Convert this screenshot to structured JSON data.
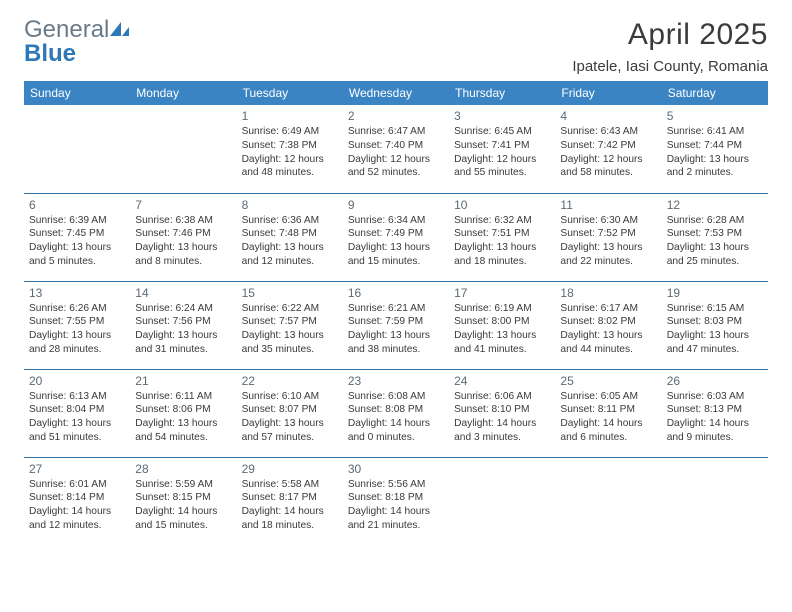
{
  "logo": {
    "text_general": "General",
    "text_blue": "Blue"
  },
  "title": "April 2025",
  "location": "Ipatele, Iasi County, Romania",
  "colors": {
    "header_bg": "#3a84c4",
    "header_text": "#ffffff",
    "rule": "#2f6fa6",
    "daynum": "#5b6a74",
    "body_text": "#3a3a3a",
    "logo_gray": "#6b7a87",
    "logo_blue": "#2f78b7"
  },
  "weekdays": [
    "Sunday",
    "Monday",
    "Tuesday",
    "Wednesday",
    "Thursday",
    "Friday",
    "Saturday"
  ],
  "weeks": [
    [
      null,
      null,
      {
        "n": "1",
        "sunrise": "6:49 AM",
        "sunset": "7:38 PM",
        "daylight": "12 hours and 48 minutes."
      },
      {
        "n": "2",
        "sunrise": "6:47 AM",
        "sunset": "7:40 PM",
        "daylight": "12 hours and 52 minutes."
      },
      {
        "n": "3",
        "sunrise": "6:45 AM",
        "sunset": "7:41 PM",
        "daylight": "12 hours and 55 minutes."
      },
      {
        "n": "4",
        "sunrise": "6:43 AM",
        "sunset": "7:42 PM",
        "daylight": "12 hours and 58 minutes."
      },
      {
        "n": "5",
        "sunrise": "6:41 AM",
        "sunset": "7:44 PM",
        "daylight": "13 hours and 2 minutes."
      }
    ],
    [
      {
        "n": "6",
        "sunrise": "6:39 AM",
        "sunset": "7:45 PM",
        "daylight": "13 hours and 5 minutes."
      },
      {
        "n": "7",
        "sunrise": "6:38 AM",
        "sunset": "7:46 PM",
        "daylight": "13 hours and 8 minutes."
      },
      {
        "n": "8",
        "sunrise": "6:36 AM",
        "sunset": "7:48 PM",
        "daylight": "13 hours and 12 minutes."
      },
      {
        "n": "9",
        "sunrise": "6:34 AM",
        "sunset": "7:49 PM",
        "daylight": "13 hours and 15 minutes."
      },
      {
        "n": "10",
        "sunrise": "6:32 AM",
        "sunset": "7:51 PM",
        "daylight": "13 hours and 18 minutes."
      },
      {
        "n": "11",
        "sunrise": "6:30 AM",
        "sunset": "7:52 PM",
        "daylight": "13 hours and 22 minutes."
      },
      {
        "n": "12",
        "sunrise": "6:28 AM",
        "sunset": "7:53 PM",
        "daylight": "13 hours and 25 minutes."
      }
    ],
    [
      {
        "n": "13",
        "sunrise": "6:26 AM",
        "sunset": "7:55 PM",
        "daylight": "13 hours and 28 minutes."
      },
      {
        "n": "14",
        "sunrise": "6:24 AM",
        "sunset": "7:56 PM",
        "daylight": "13 hours and 31 minutes."
      },
      {
        "n": "15",
        "sunrise": "6:22 AM",
        "sunset": "7:57 PM",
        "daylight": "13 hours and 35 minutes."
      },
      {
        "n": "16",
        "sunrise": "6:21 AM",
        "sunset": "7:59 PM",
        "daylight": "13 hours and 38 minutes."
      },
      {
        "n": "17",
        "sunrise": "6:19 AM",
        "sunset": "8:00 PM",
        "daylight": "13 hours and 41 minutes."
      },
      {
        "n": "18",
        "sunrise": "6:17 AM",
        "sunset": "8:02 PM",
        "daylight": "13 hours and 44 minutes."
      },
      {
        "n": "19",
        "sunrise": "6:15 AM",
        "sunset": "8:03 PM",
        "daylight": "13 hours and 47 minutes."
      }
    ],
    [
      {
        "n": "20",
        "sunrise": "6:13 AM",
        "sunset": "8:04 PM",
        "daylight": "13 hours and 51 minutes."
      },
      {
        "n": "21",
        "sunrise": "6:11 AM",
        "sunset": "8:06 PM",
        "daylight": "13 hours and 54 minutes."
      },
      {
        "n": "22",
        "sunrise": "6:10 AM",
        "sunset": "8:07 PM",
        "daylight": "13 hours and 57 minutes."
      },
      {
        "n": "23",
        "sunrise": "6:08 AM",
        "sunset": "8:08 PM",
        "daylight": "14 hours and 0 minutes."
      },
      {
        "n": "24",
        "sunrise": "6:06 AM",
        "sunset": "8:10 PM",
        "daylight": "14 hours and 3 minutes."
      },
      {
        "n": "25",
        "sunrise": "6:05 AM",
        "sunset": "8:11 PM",
        "daylight": "14 hours and 6 minutes."
      },
      {
        "n": "26",
        "sunrise": "6:03 AM",
        "sunset": "8:13 PM",
        "daylight": "14 hours and 9 minutes."
      }
    ],
    [
      {
        "n": "27",
        "sunrise": "6:01 AM",
        "sunset": "8:14 PM",
        "daylight": "14 hours and 12 minutes."
      },
      {
        "n": "28",
        "sunrise": "5:59 AM",
        "sunset": "8:15 PM",
        "daylight": "14 hours and 15 minutes."
      },
      {
        "n": "29",
        "sunrise": "5:58 AM",
        "sunset": "8:17 PM",
        "daylight": "14 hours and 18 minutes."
      },
      {
        "n": "30",
        "sunrise": "5:56 AM",
        "sunset": "8:18 PM",
        "daylight": "14 hours and 21 minutes."
      },
      null,
      null,
      null
    ]
  ],
  "labels": {
    "sunrise": "Sunrise:",
    "sunset": "Sunset:",
    "daylight": "Daylight:"
  }
}
